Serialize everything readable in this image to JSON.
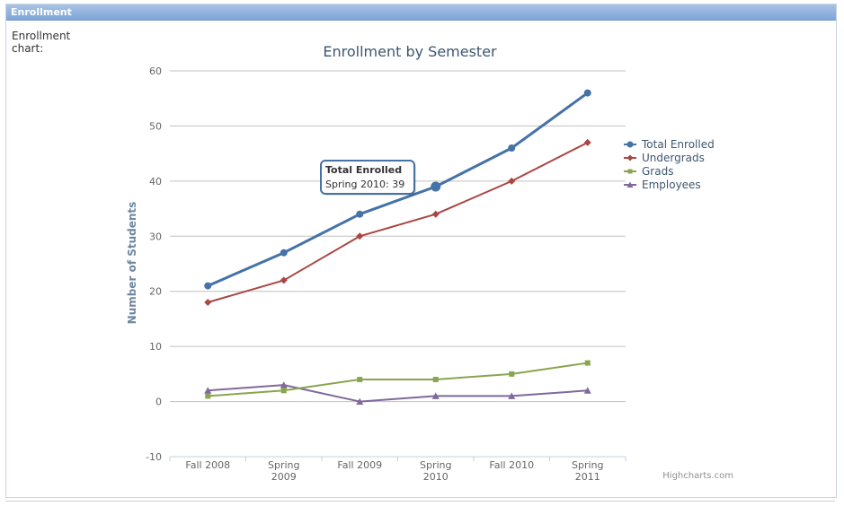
{
  "panel": {
    "title": "Enrollment",
    "label": "Enrollment chart:"
  },
  "credits": "Highcharts.com",
  "tooltip": {
    "series": "Total Enrolled",
    "text": "Spring 2010: 39",
    "point_index": 3
  },
  "colors": {
    "total": "#4572a7",
    "undergrads": "#aa4643",
    "grads": "#89a54e",
    "employees": "#80699b",
    "title": "#3e576f",
    "grid": "#c0c0c0"
  },
  "chart_data": {
    "type": "line",
    "title": "Enrollment by Semester",
    "xlabel": "",
    "ylabel": "Number of Students",
    "categories": [
      [
        "Fall 2008"
      ],
      [
        "Spring",
        "2009"
      ],
      [
        "Fall 2009"
      ],
      [
        "Spring",
        "2010"
      ],
      [
        "Fall 2010"
      ],
      [
        "Spring",
        "2011"
      ]
    ],
    "ylim": [
      -10,
      60
    ],
    "yticks": [
      -10,
      0,
      10,
      20,
      30,
      40,
      50,
      60
    ],
    "grid": true,
    "legend_position": "right",
    "series": [
      {
        "name": "Total Enrolled",
        "values": [
          21,
          27,
          34,
          39,
          46,
          56
        ],
        "marker": "circle"
      },
      {
        "name": "Undergrads",
        "values": [
          18,
          22,
          30,
          34,
          40,
          47
        ],
        "marker": "diamond"
      },
      {
        "name": "Grads",
        "values": [
          1,
          2,
          4,
          4,
          5,
          7
        ],
        "marker": "square"
      },
      {
        "name": "Employees",
        "values": [
          2,
          3,
          0,
          1,
          1,
          2
        ],
        "marker": "triangle"
      }
    ]
  }
}
